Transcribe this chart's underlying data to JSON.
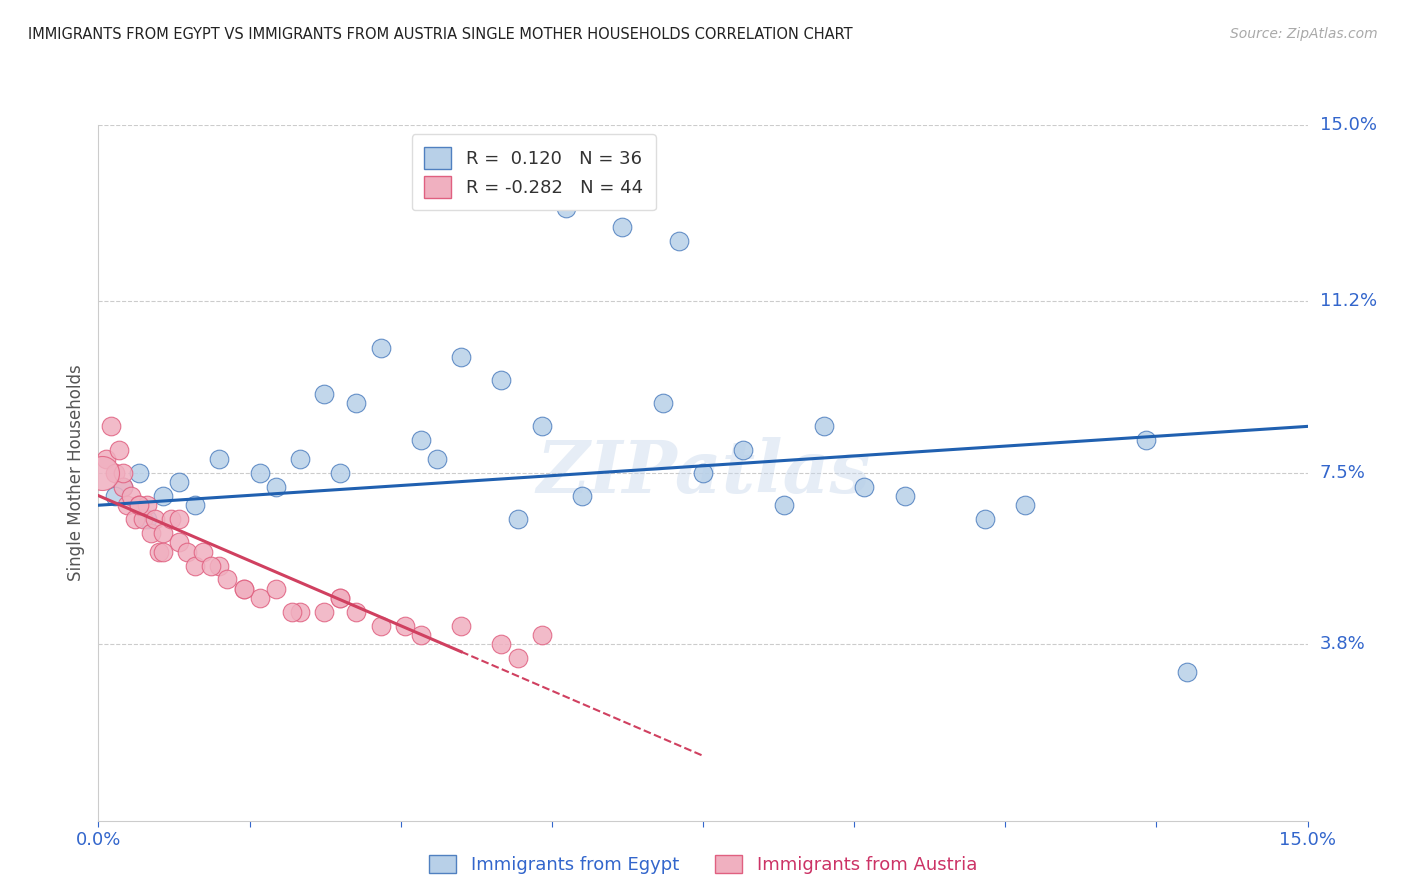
{
  "title": "IMMIGRANTS FROM EGYPT VS IMMIGRANTS FROM AUSTRIA SINGLE MOTHER HOUSEHOLDS CORRELATION CHART",
  "source": "Source: ZipAtlas.com",
  "ylabel": "Single Mother Households",
  "xlim": [
    0.0,
    15.0
  ],
  "ylim": [
    0.0,
    15.0
  ],
  "right_yticks": [
    3.8,
    7.5,
    11.2,
    15.0
  ],
  "right_ytick_labels": [
    "3.8%",
    "7.5%",
    "11.2%",
    "15.0%"
  ],
  "r_egypt": 0.12,
  "n_egypt": 36,
  "r_austria": -0.282,
  "n_austria": 44,
  "color_egypt_fill": "#b8d0e8",
  "color_austria_fill": "#f0b0c0",
  "color_egypt_edge": "#5080c0",
  "color_austria_edge": "#e06080",
  "color_egypt_line": "#2060b0",
  "color_austria_line": "#d04060",
  "watermark": "ZIPatlas",
  "egypt_x": [
    0.3,
    0.5,
    0.8,
    1.0,
    1.5,
    2.0,
    2.5,
    2.8,
    3.2,
    3.5,
    4.0,
    4.5,
    5.0,
    5.5,
    5.8,
    6.5,
    7.0,
    7.2,
    8.0,
    9.0,
    10.0,
    11.5,
    13.5,
    0.2,
    0.6,
    1.2,
    2.2,
    3.0,
    4.2,
    5.2,
    6.0,
    7.5,
    8.5,
    9.5,
    11.0,
    13.0
  ],
  "egypt_y": [
    7.2,
    7.5,
    7.0,
    7.3,
    7.8,
    7.5,
    7.8,
    9.2,
    9.0,
    10.2,
    8.2,
    10.0,
    9.5,
    8.5,
    13.2,
    12.8,
    9.0,
    12.5,
    8.0,
    8.5,
    7.0,
    6.8,
    3.2,
    7.0,
    6.5,
    6.8,
    7.2,
    7.5,
    7.8,
    6.5,
    7.0,
    7.5,
    6.8,
    7.2,
    6.5,
    8.2
  ],
  "austria_x": [
    0.1,
    0.15,
    0.2,
    0.25,
    0.3,
    0.35,
    0.4,
    0.45,
    0.5,
    0.55,
    0.6,
    0.65,
    0.7,
    0.75,
    0.8,
    0.9,
    1.0,
    1.1,
    1.2,
    1.3,
    1.5,
    1.6,
    1.8,
    2.0,
    2.2,
    2.5,
    2.8,
    3.0,
    3.2,
    3.5,
    4.0,
    4.5,
    5.0,
    5.5,
    0.3,
    0.5,
    0.8,
    1.0,
    1.4,
    1.8,
    2.4,
    3.0,
    3.8,
    5.2
  ],
  "austria_y": [
    7.8,
    8.5,
    7.5,
    8.0,
    7.2,
    6.8,
    7.0,
    6.5,
    6.8,
    6.5,
    6.8,
    6.2,
    6.5,
    5.8,
    6.2,
    6.5,
    6.0,
    5.8,
    5.5,
    5.8,
    5.5,
    5.2,
    5.0,
    4.8,
    5.0,
    4.5,
    4.5,
    4.8,
    4.5,
    4.2,
    4.0,
    4.2,
    3.8,
    4.0,
    7.5,
    6.8,
    5.8,
    6.5,
    5.5,
    5.0,
    4.5,
    4.8,
    4.2,
    3.5
  ],
  "austria_line_solid_end": 4.5,
  "austria_line_dashed_end": 7.5,
  "blue_line_x0": 0.0,
  "blue_line_x1": 15.0,
  "blue_line_y0": 6.8,
  "blue_line_y1": 8.5
}
